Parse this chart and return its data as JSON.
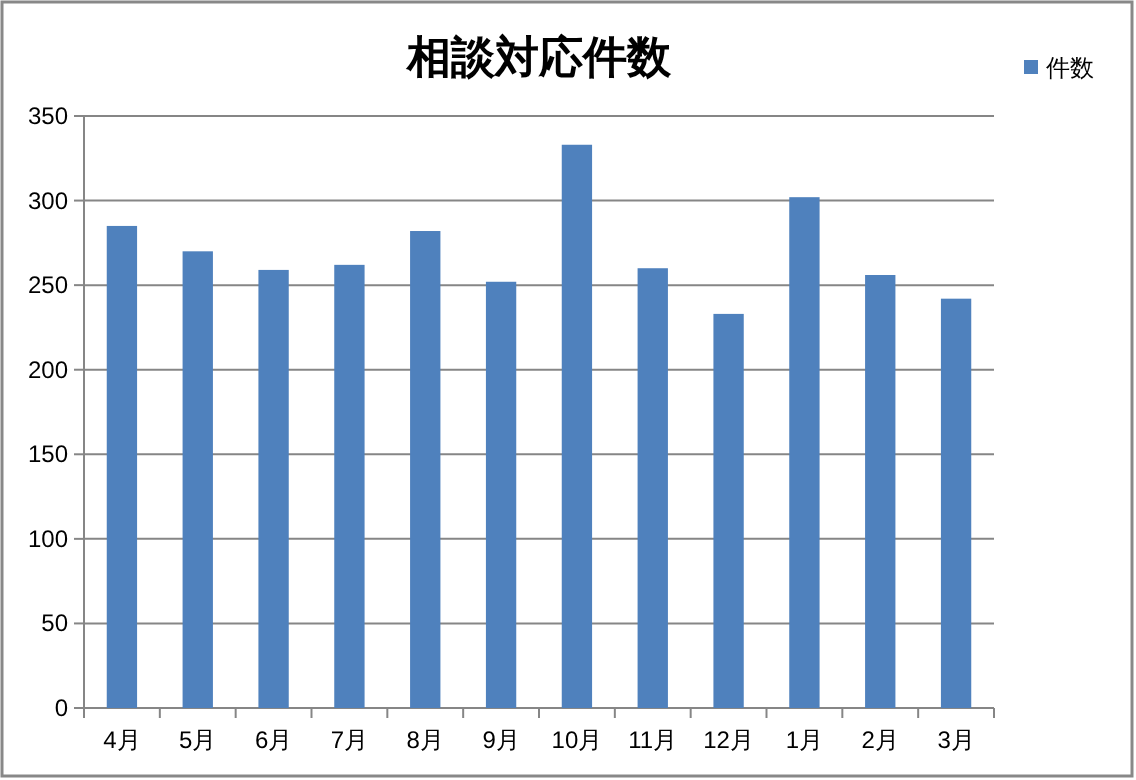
{
  "chart_data": {
    "type": "bar",
    "title": "相談対応件数",
    "categories": [
      "4月",
      "5月",
      "6月",
      "7月",
      "8月",
      "9月",
      "10月",
      "11月",
      "12月",
      "1月",
      "2月",
      "3月"
    ],
    "series": [
      {
        "name": "件数",
        "color": "#4f81bd",
        "values": [
          285,
          270,
          259,
          262,
          282,
          252,
          333,
          260,
          233,
          302,
          256,
          242
        ]
      }
    ],
    "ylim": [
      0,
      350
    ],
    "yticks": [
      0,
      50,
      100,
      150,
      200,
      250,
      300,
      350
    ],
    "grid": "y",
    "legend": "top right"
  }
}
